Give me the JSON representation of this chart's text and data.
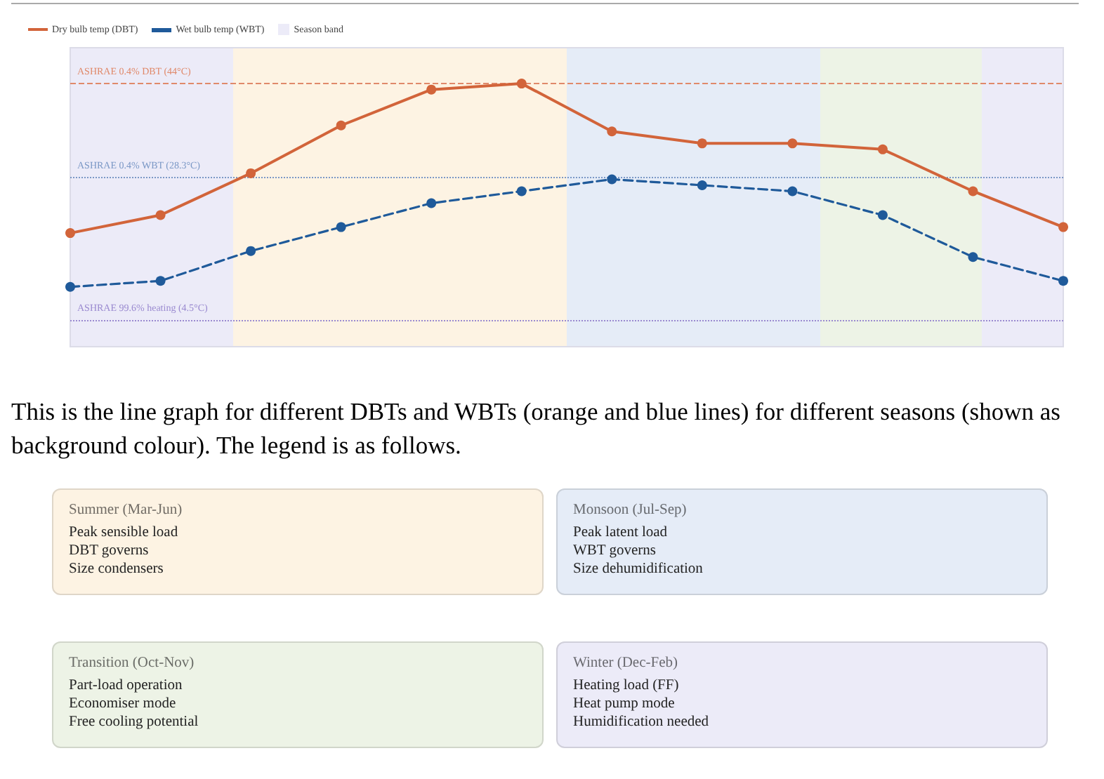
{
  "chart_data": {
    "type": "line",
    "categories": [
      null,
      null,
      null,
      null,
      null,
      null,
      null,
      null,
      null,
      null,
      null,
      null
    ],
    "ylim": [
      0,
      50
    ],
    "tick_labels": false,
    "legend": "top left",
    "marker": "circle",
    "series": [
      {
        "name": "Dry bulb temp (DBT)",
        "color": "#d2643a",
        "line_style": "solid",
        "values": [
          19,
          22,
          29,
          37,
          43,
          44,
          36,
          34,
          34,
          33,
          26,
          20
        ]
      },
      {
        "name": "Wet bulb temp (WBT)",
        "color": "#1f5a9a",
        "line_style": "dashed",
        "values": [
          10,
          11,
          16,
          20,
          24,
          26,
          28,
          27,
          26,
          22,
          15,
          11
        ]
      }
    ],
    "ref_lines": [
      {
        "axis": "y",
        "value": 44,
        "label": "ASHRAE 0.4% DBT (44°C)",
        "color": "#e0896a",
        "line_style": "dashed"
      },
      {
        "axis": "y",
        "value": 28.3,
        "label": "ASHRAE 0.4% WBT (28.3°C)",
        "color": "#7b98c6",
        "line_style": "dotted"
      },
      {
        "axis": "y",
        "value": 4.5,
        "label": "ASHRAE 99.6% heating (4.5°C)",
        "color": "#9a8ad0",
        "line_style": "dotted"
      }
    ],
    "annotations": [
      "Season band",
      "This is the line graph for different DBTs and WBTs (orange and blue lines) for different seasons (shown as background colour). The legend is as follows.",
      "Summer (Mar-Jun)\nPeak sensible load\nDBT governs\nSize condensers",
      "Monsoon (Jul-Sep)\nPeak latent load\nWBT governs\nSize dehumidification",
      "Transition (Oct-Nov)\nPart-load operation\nEconomiser mode\nFree cooling potential",
      "Winter (Dec-Feb)\nHeating load (FF)\nHeat pump mode\nHumidification needed"
    ]
  }
}
